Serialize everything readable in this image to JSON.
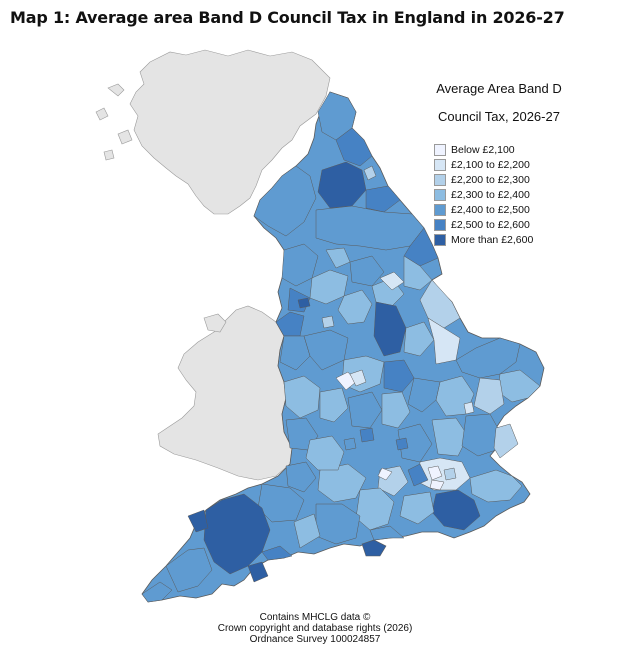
{
  "title": "Map 1: Average area Band D Council Tax in England in 2026-27",
  "legend": {
    "title_line1": "Average Area Band D",
    "title_line2": "Council Tax, 2026-27",
    "items": [
      {
        "label": "Below £2,100",
        "color": "#eff3ff"
      },
      {
        "label": "£2,100 to £2,200",
        "color": "#d6e6f5"
      },
      {
        "label": "£2,200 to £2,300",
        "color": "#b3d1ea"
      },
      {
        "label": "£2,300 to £2,400",
        "color": "#8dbde2"
      },
      {
        "label": "£2,400 to £2,500",
        "color": "#5f9bd1"
      },
      {
        "label": "£2,500 to £2,600",
        "color": "#4682c4"
      },
      {
        "label": "More than £2,600",
        "color": "#2e5fa3"
      }
    ]
  },
  "colors": {
    "land_other": "#e4e4e4",
    "border": "#5a5a5a"
  },
  "source": {
    "line1": "Contains MHCLG data ©",
    "line2": "Crown copyright and database rights (2026)",
    "line3": "Ordnance Survey 100024857"
  }
}
